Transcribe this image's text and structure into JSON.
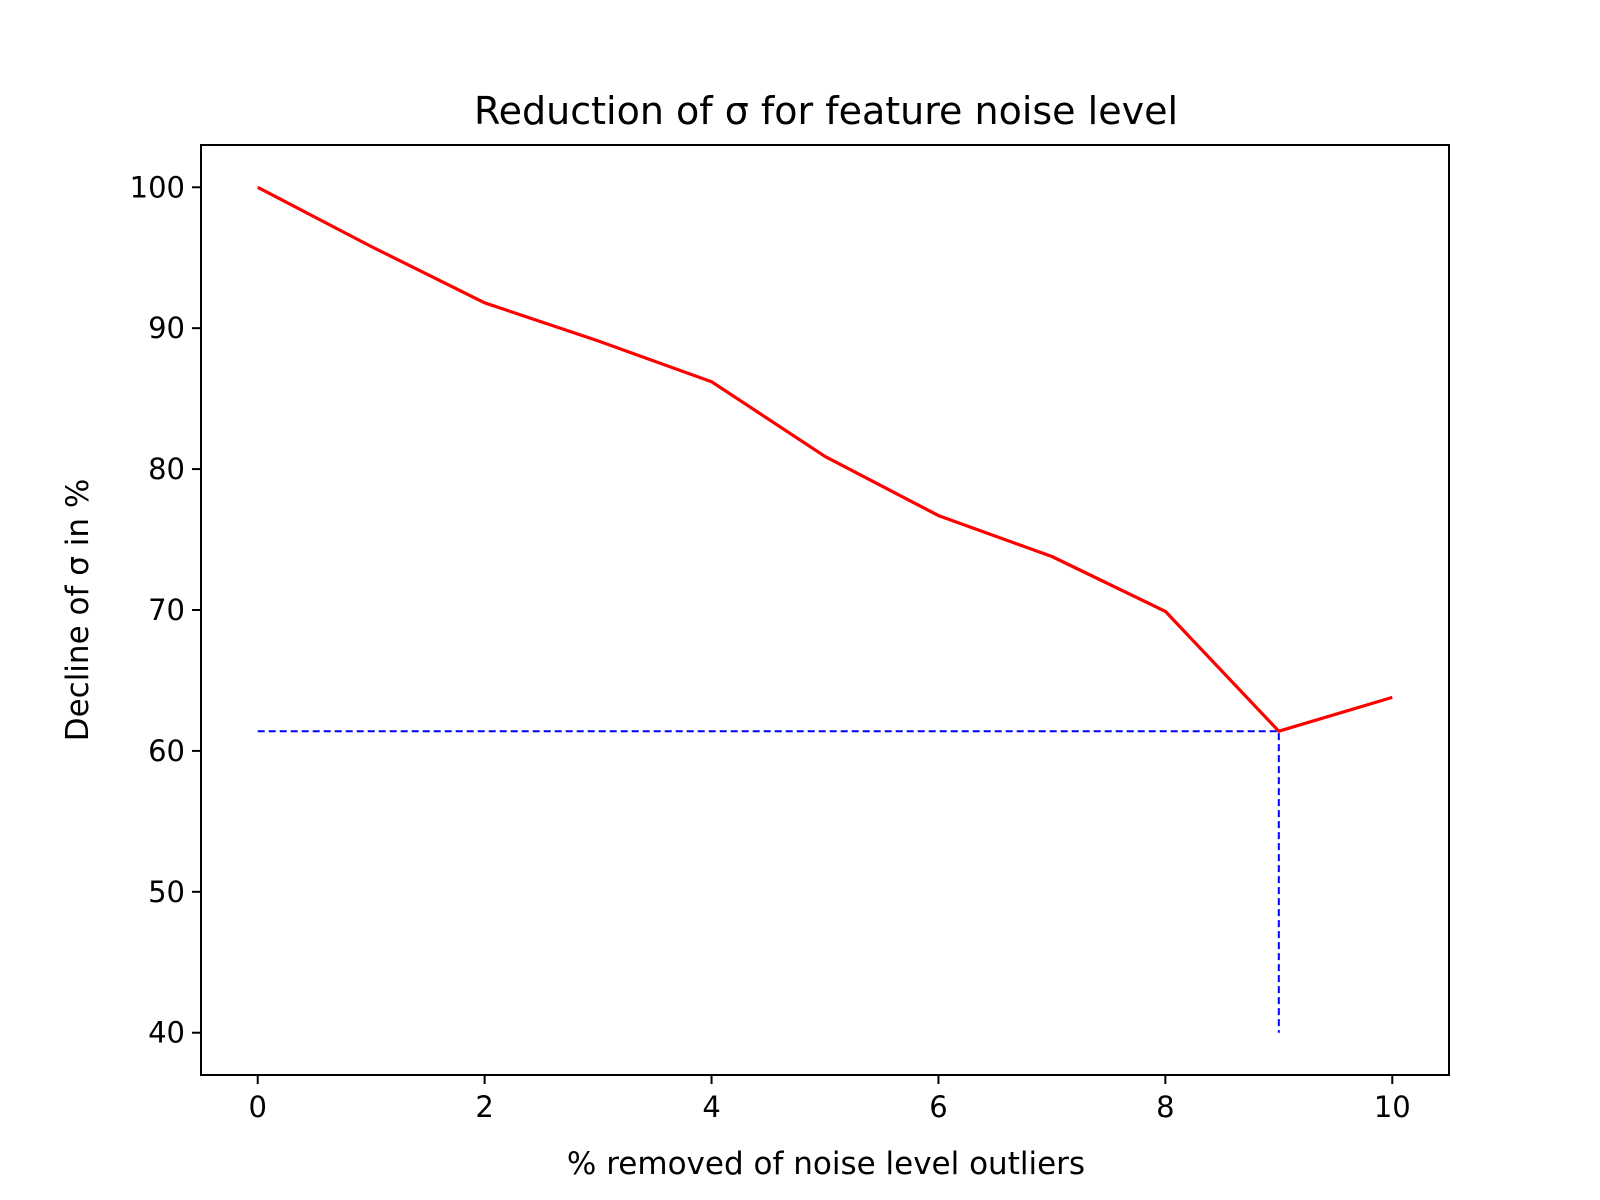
{
  "chart_data": {
    "type": "line",
    "title": "Reduction of σ for feature noise level",
    "xlabel": "% removed of noise level outliers",
    "ylabel": "Decline of σ in %",
    "xlim": [
      -0.5,
      10.5
    ],
    "ylim": [
      37,
      103
    ],
    "xticks": [
      0,
      2,
      4,
      6,
      8,
      10
    ],
    "yticks": [
      40,
      50,
      60,
      70,
      80,
      90,
      100
    ],
    "grid": false,
    "legend": "none",
    "series": [
      {
        "color": "#ff0000",
        "style": "solid",
        "x": [
          0,
          1,
          2,
          3,
          4,
          5,
          6,
          7,
          8,
          9,
          10
        ],
        "y": [
          100,
          95.8,
          91.8,
          89.1,
          86.2,
          80.9,
          76.7,
          73.8,
          69.9,
          61.4,
          63.8
        ]
      }
    ],
    "reference_lines": [
      {
        "color": "#0000ff",
        "style": "dashed",
        "points": [
          [
            0,
            61.4
          ],
          [
            9,
            61.4
          ],
          [
            9,
            40
          ]
        ]
      }
    ]
  }
}
